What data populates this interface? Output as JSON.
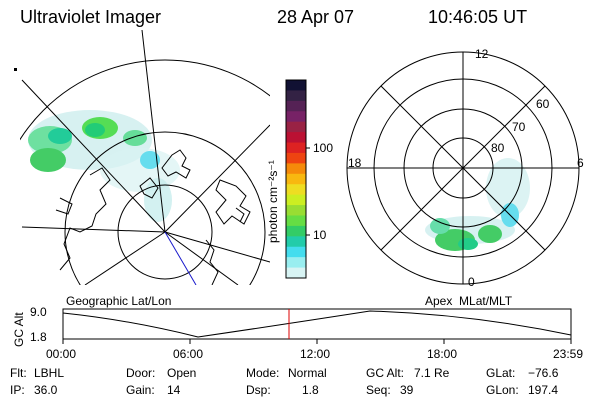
{
  "header": {
    "instrument": "Ultraviolet Imager",
    "date": "28 Apr 07",
    "time": "10:46:05 UT"
  },
  "colorbar": {
    "unit_label": "photon cm⁻²s⁻¹",
    "tick_100": "100",
    "tick_10": "10",
    "colors": [
      "#111133",
      "#332244",
      "#552255",
      "#772266",
      "#992244",
      "#bb1133",
      "#dd2222",
      "#ee4411",
      "#f58a0a",
      "#f8b810",
      "#eedd22",
      "#ccee22",
      "#99dd33",
      "#66dd44",
      "#33cc66",
      "#22ccaa",
      "#44ddee",
      "#99eef0",
      "#d8f4f4"
    ]
  },
  "geographic_panel": {
    "label": "Geographic Lat/Lon"
  },
  "apex_panel": {
    "label": "Apex  MLat/MLT",
    "mlt_labels": {
      "top": "12",
      "left": "18",
      "right": "6",
      "bottom": "0"
    },
    "lat_labels": [
      "60",
      "70",
      "80"
    ]
  },
  "timeline": {
    "axis_label": "GC Alt",
    "y_ticks": [
      "9.0",
      "1.8"
    ],
    "x_ticks": [
      "00:00",
      "06:00",
      "12:00",
      "18:00",
      "23:59"
    ],
    "marker_color": "#dd0000"
  },
  "info": {
    "flt_label": "Flt:",
    "flt_value": "LBHL",
    "ip_label": "IP:",
    "ip_value": "36.0",
    "door_label": "Door:",
    "door_value": "Open",
    "gain_label": "Gain:",
    "gain_value": "14",
    "mode_label": "Mode:",
    "mode_value": "Normal",
    "dsp_label": "Dsp:",
    "dsp_value": "1.8",
    "gcalt_label": "GC Alt:",
    "gcalt_value": "7.1 Re",
    "seq_label": "Seq:",
    "seq_value": "39",
    "glat_label": "GLat:",
    "glat_value": "−76.6",
    "glon_label": "GLon:",
    "glon_value": "197.4"
  }
}
